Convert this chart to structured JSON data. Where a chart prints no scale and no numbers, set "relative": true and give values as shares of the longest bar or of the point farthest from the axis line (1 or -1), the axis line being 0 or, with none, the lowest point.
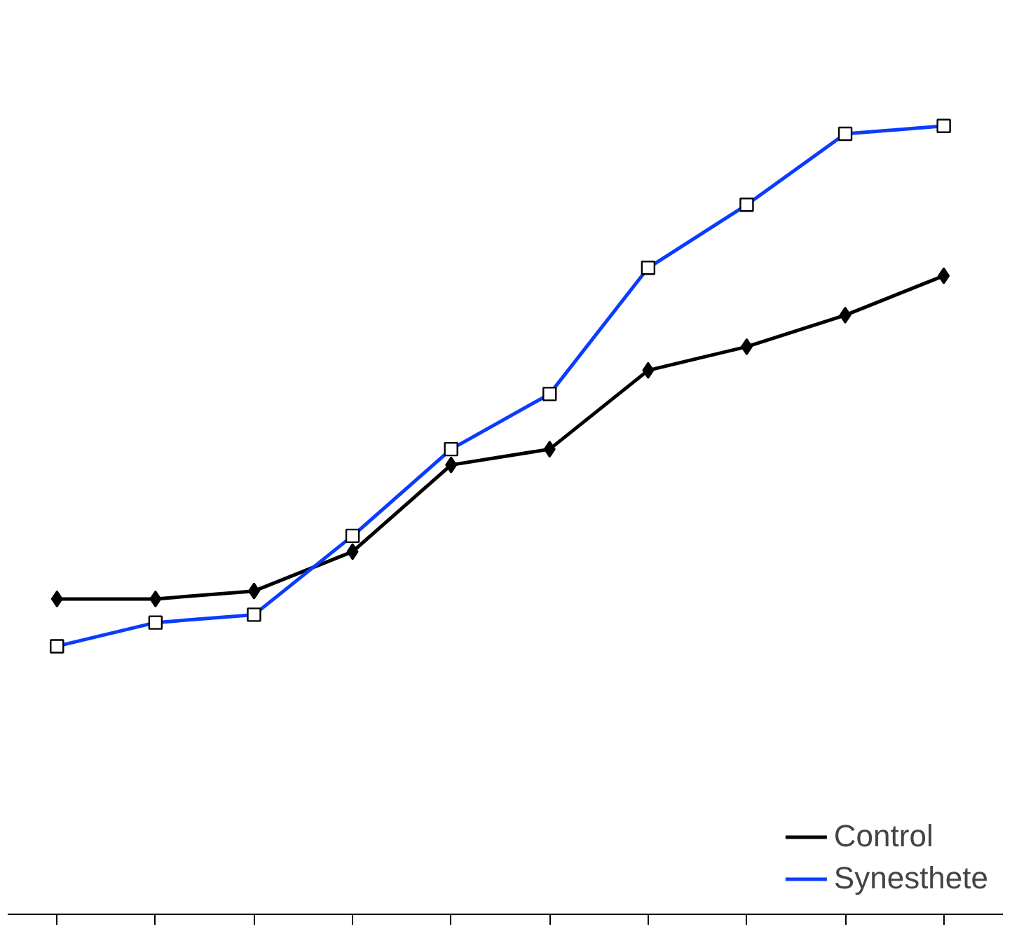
{
  "chart_data": {
    "type": "line",
    "relative": true,
    "categories": [
      null,
      null,
      null,
      null,
      null,
      null,
      null,
      null,
      null,
      null
    ],
    "series": [
      {
        "name": "Control",
        "color": "#000000",
        "marker": "diamond",
        "values": [
          0.4,
          0.4,
          0.41,
          0.46,
          0.57,
          0.59,
          0.69,
          0.72,
          0.76,
          0.81
        ]
      },
      {
        "name": "Synesthete",
        "color": "#0a3cff",
        "marker": "square",
        "values": [
          0.34,
          0.37,
          0.38,
          0.48,
          0.59,
          0.66,
          0.82,
          0.9,
          0.99,
          1.0
        ]
      }
    ],
    "grid": false,
    "legend": "bottom right",
    "line_style": "solid"
  }
}
